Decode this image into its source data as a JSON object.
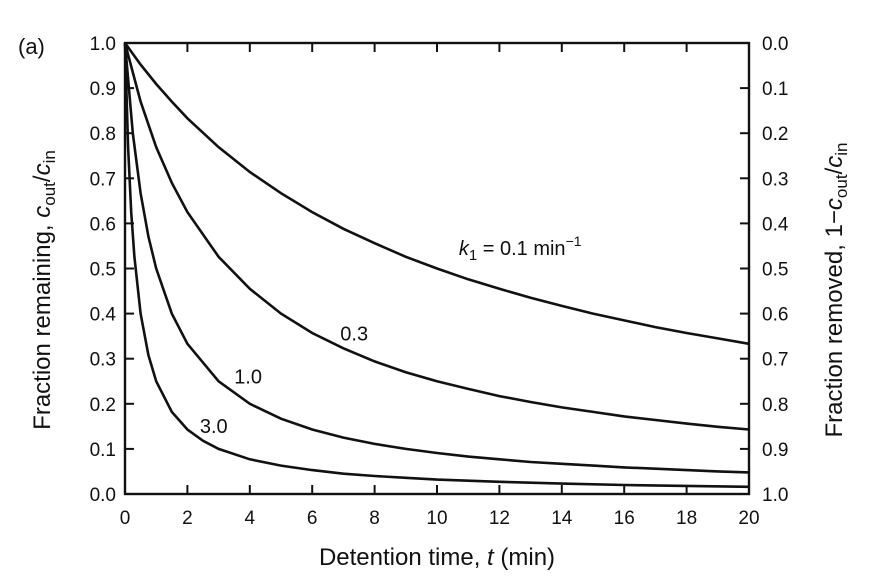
{
  "chart_data": {
    "type": "line",
    "panel_tag": "(a)",
    "xlabel": {
      "main": "Detention time, ",
      "var": "t",
      "unit": " (min)"
    },
    "ylabel_left": {
      "prefix": "Fraction remaining, ",
      "c1": "c",
      "sub1": "out",
      "slash": "/",
      "c2": "c",
      "sub2": "in"
    },
    "ylabel_right": {
      "prefix": "Fraction removed, 1−",
      "c1": "c",
      "sub1": "out",
      "slash": "/",
      "c2": "c",
      "sub2": "in"
    },
    "xlim": [
      0,
      20
    ],
    "ylim_left": [
      0,
      1
    ],
    "ylim_right": [
      1,
      0
    ],
    "x_ticks": [
      "0",
      "2",
      "4",
      "6",
      "8",
      "10",
      "12",
      "14",
      "16",
      "18",
      "20"
    ],
    "y_ticks_left": [
      "0.0",
      "0.1",
      "0.2",
      "0.3",
      "0.4",
      "0.5",
      "0.6",
      "0.7",
      "0.8",
      "0.9",
      "1.0"
    ],
    "y_ticks_right": [
      "1.0",
      "0.9",
      "0.8",
      "0.7",
      "0.6",
      "0.5",
      "0.4",
      "0.3",
      "0.2",
      "0.1",
      "0.0"
    ],
    "grid": false,
    "legend": "none",
    "series": [
      {
        "k": 0.1,
        "label_parts": {
          "k": "k",
          "sub": "1",
          "rest": " = 0.1 min",
          "sup": "−1"
        },
        "x": [
          0,
          0.5,
          1,
          1.5,
          2,
          3,
          4,
          5,
          6,
          7,
          8,
          9,
          10,
          11,
          12,
          13,
          14,
          15,
          16,
          17,
          18,
          19,
          20
        ],
        "values": [
          1.0,
          0.952,
          0.909,
          0.87,
          0.833,
          0.769,
          0.714,
          0.667,
          0.625,
          0.588,
          0.556,
          0.526,
          0.5,
          0.476,
          0.455,
          0.435,
          0.417,
          0.4,
          0.385,
          0.37,
          0.357,
          0.345,
          0.333
        ]
      },
      {
        "k": 0.3,
        "label": "0.3",
        "x": [
          0,
          0.5,
          1,
          1.5,
          2,
          3,
          4,
          5,
          6,
          7,
          8,
          9,
          10,
          11,
          12,
          13,
          14,
          15,
          16,
          17,
          18,
          19,
          20
        ],
        "values": [
          1.0,
          0.87,
          0.769,
          0.69,
          0.625,
          0.526,
          0.455,
          0.4,
          0.357,
          0.323,
          0.294,
          0.27,
          0.25,
          0.233,
          0.217,
          0.204,
          0.192,
          0.182,
          0.172,
          0.164,
          0.156,
          0.149,
          0.143
        ]
      },
      {
        "k": 1.0,
        "label": "1.0",
        "x": [
          0,
          0.25,
          0.5,
          0.75,
          1,
          1.5,
          2,
          3,
          4,
          5,
          6,
          7,
          8,
          9,
          10,
          11,
          12,
          13,
          14,
          15,
          16,
          17,
          18,
          19,
          20
        ],
        "values": [
          1.0,
          0.8,
          0.667,
          0.571,
          0.5,
          0.4,
          0.333,
          0.25,
          0.2,
          0.167,
          0.143,
          0.125,
          0.111,
          0.1,
          0.091,
          0.083,
          0.077,
          0.071,
          0.067,
          0.063,
          0.059,
          0.056,
          0.053,
          0.05,
          0.048
        ]
      },
      {
        "k": 3.0,
        "label": "3.0",
        "x": [
          0,
          0.1,
          0.2,
          0.3,
          0.5,
          0.75,
          1,
          1.5,
          2,
          2.5,
          3,
          4,
          5,
          6,
          7,
          8,
          9,
          10,
          12,
          14,
          16,
          18,
          20
        ],
        "values": [
          1.0,
          0.769,
          0.625,
          0.526,
          0.4,
          0.308,
          0.25,
          0.182,
          0.143,
          0.118,
          0.1,
          0.077,
          0.063,
          0.053,
          0.045,
          0.04,
          0.036,
          0.032,
          0.027,
          0.023,
          0.02,
          0.018,
          0.016
        ]
      }
    ]
  }
}
